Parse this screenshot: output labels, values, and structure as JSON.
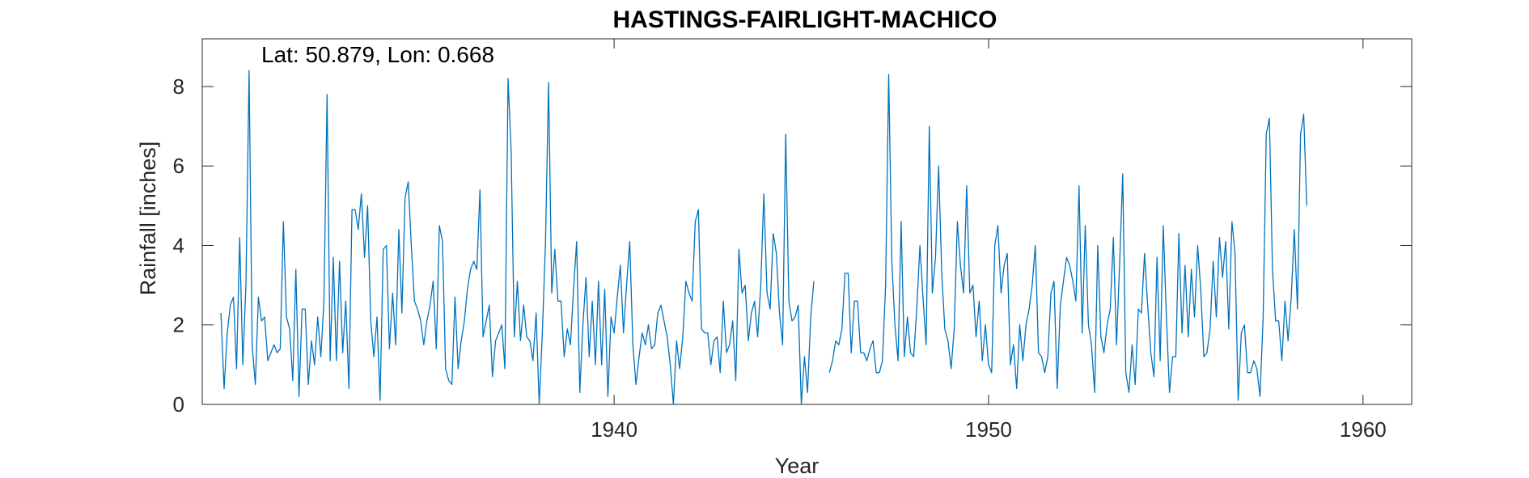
{
  "chart_data": {
    "type": "line",
    "title": "HASTINGS-FAIRLIGHT-MACHICO",
    "annotation": "Lat: 50.879, Lon: 0.668",
    "xlabel": "Year",
    "ylabel": "Rainfall [inches]",
    "xlim": [
      1929.0,
      1961.3
    ],
    "ylim": [
      0,
      9.2
    ],
    "xticks": [
      1940,
      1950,
      1960
    ],
    "xtick_labels": [
      "1940",
      "1950",
      "1960"
    ],
    "yticks": [
      0,
      2,
      4,
      6,
      8
    ],
    "ytick_labels": [
      "0",
      "2",
      "4",
      "6",
      "8"
    ],
    "grid": false,
    "line_color": "#0072BD",
    "series": [
      {
        "start_year": 1929.5,
        "step": 0.08333,
        "values": [
          2.3,
          0.4,
          1.8,
          2.5,
          2.7,
          0.9,
          4.2,
          1.0,
          3.0,
          8.4,
          1.5,
          0.5,
          2.7,
          2.1,
          2.2,
          1.1,
          1.3,
          1.5,
          1.3,
          1.4,
          4.6,
          2.2,
          1.9,
          0.6,
          3.4,
          0.2,
          2.4,
          2.4,
          0.5,
          1.6,
          1.0,
          2.2,
          1.2,
          2.6,
          7.8,
          1.1,
          3.7,
          1.1,
          3.6,
          1.3,
          2.6,
          0.4,
          4.9,
          4.9,
          4.4,
          5.3,
          3.7,
          5.0,
          2.1,
          1.2,
          2.2,
          0.1,
          3.9,
          4.0,
          1.4,
          2.8,
          1.5,
          4.4,
          2.3,
          5.2,
          5.6,
          4.0,
          2.6,
          2.4,
          2.1,
          1.5,
          2.1,
          2.5,
          3.1,
          1.4,
          4.5,
          4.1,
          0.9,
          0.6,
          0.5,
          2.7,
          0.9,
          1.6,
          2.1,
          2.9,
          3.4,
          3.6,
          3.4,
          5.4,
          1.7,
          2.1,
          2.5,
          0.7,
          1.6,
          1.8,
          2.0,
          0.9,
          8.2,
          6.4,
          1.7,
          3.1,
          1.6,
          2.5,
          1.7,
          1.6,
          1.1,
          2.3,
          0.0,
          1.8,
          4.1,
          8.1,
          2.8,
          3.9,
          2.6,
          2.6,
          1.2,
          1.9,
          1.5,
          2.9,
          4.1,
          0.3,
          2.0,
          3.2,
          1.2,
          2.6,
          1.0,
          3.1,
          1.0,
          2.9,
          0.2,
          2.2,
          1.8,
          2.7,
          3.5,
          1.8,
          3.0,
          4.1,
          1.5,
          0.5,
          1.2,
          1.8,
          1.5,
          2.0,
          1.4,
          1.5,
          2.3,
          2.5,
          2.1,
          1.7,
          1.0,
          0.0,
          1.6,
          0.9,
          1.7,
          3.1,
          2.8,
          2.6,
          4.6,
          4.9,
          1.9,
          1.8,
          1.8,
          1.0,
          1.6,
          1.7,
          0.8,
          2.6,
          1.3,
          1.5,
          2.1,
          0.6,
          3.9,
          2.8,
          3.0,
          1.6,
          2.3,
          2.6,
          1.7,
          3.0,
          5.3,
          2.8,
          2.4,
          4.3,
          3.8,
          2.3,
          1.5,
          6.8,
          2.6,
          2.1,
          2.2,
          2.5,
          0.0,
          1.2,
          0.3,
          2.2,
          3.1,
          null,
          null,
          null,
          null,
          0.8,
          1.1,
          1.6,
          1.5,
          1.9,
          3.3,
          3.3,
          1.3,
          2.6,
          2.6,
          1.3,
          1.3,
          1.1,
          1.4,
          1.6,
          0.8,
          0.8,
          1.1,
          3.0,
          8.3,
          3.6,
          2.0,
          1.1,
          4.6,
          1.2,
          2.2,
          1.3,
          1.2,
          2.4,
          4.0,
          2.7,
          1.5,
          7.0,
          2.8,
          3.7,
          6.0,
          3.3,
          1.9,
          1.6,
          0.9,
          1.9,
          4.6,
          3.5,
          2.8,
          5.5,
          2.8,
          3.0,
          1.7,
          2.6,
          1.1,
          2.0,
          1.0,
          0.8,
          4.0,
          4.5,
          2.8,
          3.5,
          3.8,
          1.0,
          1.5,
          0.4,
          2.0,
          1.1,
          2.0,
          2.4,
          3.0,
          4.0,
          1.3,
          1.2,
          0.8,
          1.2,
          2.8,
          3.1,
          0.4,
          2.5,
          3.1,
          3.7,
          3.5,
          3.1,
          2.6,
          5.5,
          1.8,
          4.5,
          2.0,
          1.5,
          0.3,
          4.0,
          1.7,
          1.3,
          2.0,
          2.4,
          4.2,
          1.5,
          3.5,
          5.8,
          0.8,
          0.3,
          1.5,
          0.5,
          2.4,
          2.3,
          3.8,
          2.5,
          1.3,
          0.7,
          3.7,
          1.1,
          4.5,
          2.2,
          0.3,
          1.2,
          1.2,
          4.3,
          1.8,
          3.5,
          1.7,
          3.4,
          2.2,
          4.0,
          2.9,
          1.2,
          1.3,
          1.9,
          3.6,
          2.2,
          4.2,
          3.2,
          4.1,
          1.9,
          4.6,
          3.8,
          0.1,
          1.8,
          2.0,
          0.8,
          0.8,
          1.1,
          0.9,
          0.2,
          2.2,
          6.8,
          7.2,
          3.4,
          2.1,
          2.1,
          1.1,
          2.6,
          1.6,
          2.7,
          4.4,
          2.4,
          6.8,
          7.3,
          5.0
        ]
      }
    ]
  }
}
